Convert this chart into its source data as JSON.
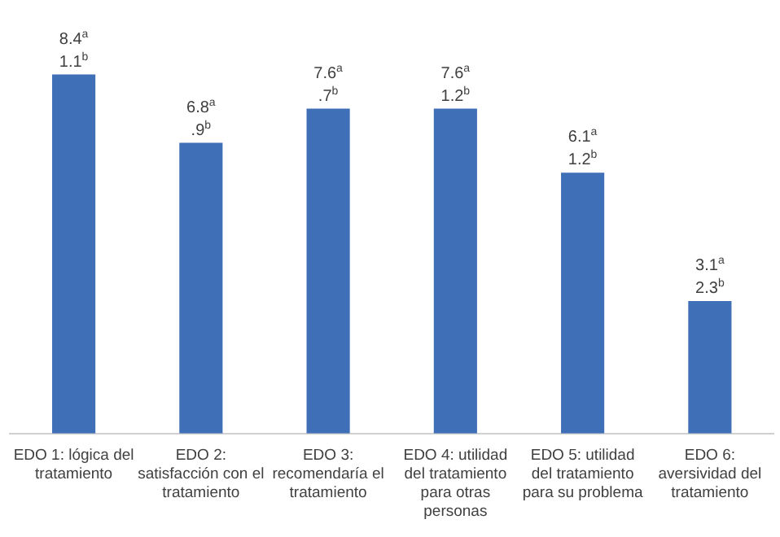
{
  "chart_data": {
    "type": "bar",
    "categories": [
      "EDO 1: lógica del tratamiento",
      "EDO 2: satisfacción con el tratamiento",
      "EDO 3: recomendaría el tratamiento",
      "EDO 4: utilidad del tratamiento para otras personas",
      "EDO 5: utilidad del tratamiento para su problema",
      "EDO 6: aversividad del tratamiento"
    ],
    "values": [
      8.4,
      6.8,
      7.6,
      7.6,
      6.1,
      3.1
    ],
    "value_labels": [
      "8.4$^{a}$\n1.1$^{b}$",
      "6.8$^{a}$\n.9$^{b}$",
      "7.6$^{a}$\n.7$^{b}$",
      "7.6$^{a}$\n1.2$^{b}$",
      "6.1$^{a}$\n1.2$^{b}$",
      "3.1$^{a}$\n2.3$^{b}$"
    ],
    "color": "#3f6fb6",
    "grid": false,
    "legend": false
  }
}
